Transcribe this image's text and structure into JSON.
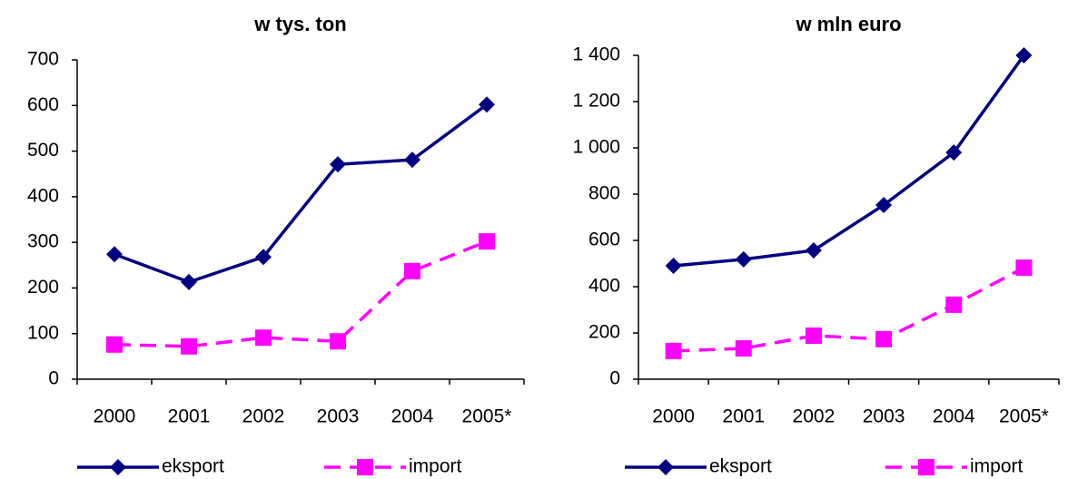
{
  "chart_data": [
    {
      "type": "line",
      "title": "w tys. ton",
      "categories": [
        "2000",
        "2001",
        "2002",
        "2003",
        "2004",
        "2005*"
      ],
      "ylim": [
        0,
        700
      ],
      "yticks": [
        0,
        100,
        200,
        300,
        400,
        500,
        600,
        700
      ],
      "series": [
        {
          "name": "eksport",
          "color": "#000080",
          "marker": "diamond",
          "line_style": "solid",
          "values": [
            274,
            213,
            268,
            471,
            481,
            602
          ]
        },
        {
          "name": "import",
          "color": "#ff00ff",
          "marker": "square",
          "line_style": "dashed",
          "values": [
            76,
            72,
            91,
            83,
            237,
            302
          ]
        }
      ]
    },
    {
      "type": "line",
      "title": "w mln euro",
      "categories": [
        "2000",
        "2001",
        "2002",
        "2003",
        "2004",
        "2005*"
      ],
      "ylim": [
        0,
        1400
      ],
      "yticks": [
        0,
        200,
        400,
        600,
        800,
        {
          "value": 1000,
          "label": "1 000"
        },
        {
          "value": 1200,
          "label": "1 200"
        },
        {
          "value": 1400,
          "label": "1 400"
        }
      ],
      "series": [
        {
          "name": "eksport",
          "color": "#000080",
          "marker": "diamond",
          "line_style": "solid",
          "values": [
            490,
            518,
            557,
            753,
            980,
            1400
          ]
        },
        {
          "name": "import",
          "color": "#ff00ff",
          "marker": "square",
          "line_style": "dashed",
          "values": [
            122,
            133,
            188,
            173,
            322,
            482
          ]
        }
      ]
    }
  ]
}
